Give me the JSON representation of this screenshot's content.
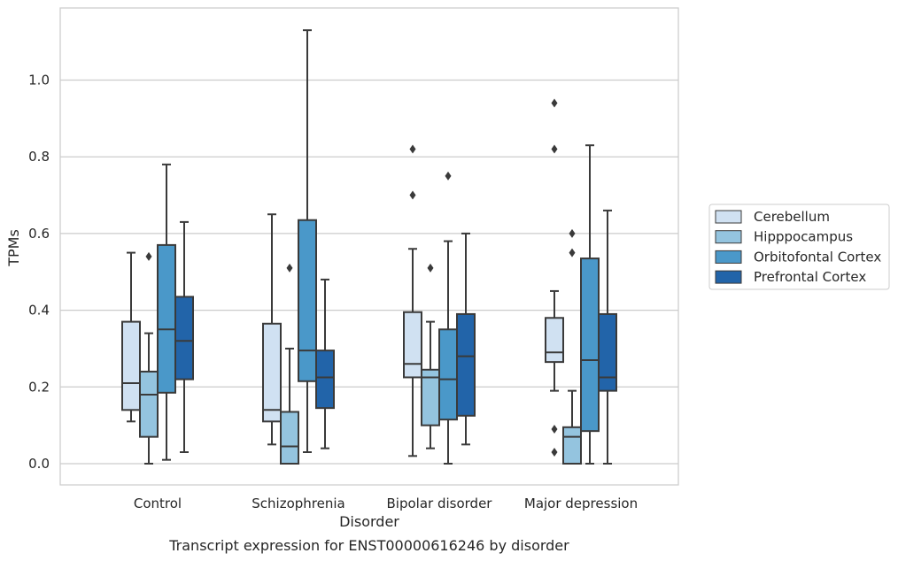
{
  "chart_data": {
    "type": "boxplot",
    "caption": "Transcript expression for ENST00000616246 by disorder",
    "xlabel": "Disorder",
    "ylabel": "TPMs",
    "ylim": [
      -0.055,
      1.19
    ],
    "yticks": [
      "0.0",
      "0.2",
      "0.4",
      "0.6",
      "0.8",
      "1.0"
    ],
    "grid": "horizontal",
    "legend_position": "right",
    "categories": [
      "Control",
      "Schizophrenia",
      "Bipolar disorder",
      "Major depression"
    ],
    "series": [
      {
        "name": "Cerebellum",
        "color": "#d0e1f2",
        "boxes": [
          {
            "min": 0.11,
            "q1": 0.14,
            "median": 0.21,
            "q3": 0.37,
            "max": 0.55,
            "outliers": []
          },
          {
            "min": 0.05,
            "q1": 0.11,
            "median": 0.14,
            "q3": 0.365,
            "max": 0.65,
            "outliers": []
          },
          {
            "min": 0.02,
            "q1": 0.225,
            "median": 0.26,
            "q3": 0.395,
            "max": 0.56,
            "outliers": [
              0.82,
              0.7
            ]
          },
          {
            "min": 0.19,
            "q1": 0.265,
            "median": 0.29,
            "q3": 0.38,
            "max": 0.45,
            "outliers": [
              0.94,
              0.82,
              0.09,
              0.03
            ]
          }
        ]
      },
      {
        "name": "Hipppocampus",
        "color": "#94c4df",
        "boxes": [
          {
            "min": 0.0,
            "q1": 0.07,
            "median": 0.18,
            "q3": 0.24,
            "max": 0.34,
            "outliers": [
              0.54
            ]
          },
          {
            "min": 0.0,
            "q1": 0.0,
            "median": 0.045,
            "q3": 0.135,
            "max": 0.3,
            "outliers": [
              0.51
            ]
          },
          {
            "min": 0.04,
            "q1": 0.1,
            "median": 0.225,
            "q3": 0.245,
            "max": 0.37,
            "outliers": [
              0.51
            ]
          },
          {
            "min": 0.0,
            "q1": 0.0,
            "median": 0.07,
            "q3": 0.095,
            "max": 0.19,
            "outliers": [
              0.6,
              0.55
            ]
          }
        ]
      },
      {
        "name": "Orbitofontal Cortex",
        "color": "#4a98c9",
        "boxes": [
          {
            "min": 0.01,
            "q1": 0.185,
            "median": 0.35,
            "q3": 0.57,
            "max": 0.78,
            "outliers": []
          },
          {
            "min": 0.03,
            "q1": 0.215,
            "median": 0.295,
            "q3": 0.635,
            "max": 1.13,
            "outliers": []
          },
          {
            "min": 0.0,
            "q1": 0.115,
            "median": 0.22,
            "q3": 0.35,
            "max": 0.58,
            "outliers": [
              0.75
            ]
          },
          {
            "min": 0.0,
            "q1": 0.085,
            "median": 0.27,
            "q3": 0.535,
            "max": 0.83,
            "outliers": []
          }
        ]
      },
      {
        "name": "Prefrontal Cortex",
        "color": "#2264a9",
        "boxes": [
          {
            "min": 0.03,
            "q1": 0.22,
            "median": 0.32,
            "q3": 0.435,
            "max": 0.63,
            "outliers": []
          },
          {
            "min": 0.04,
            "q1": 0.145,
            "median": 0.225,
            "q3": 0.295,
            "max": 0.48,
            "outliers": []
          },
          {
            "min": 0.05,
            "q1": 0.125,
            "median": 0.28,
            "q3": 0.39,
            "max": 0.6,
            "outliers": []
          },
          {
            "min": 0.0,
            "q1": 0.19,
            "median": 0.225,
            "q3": 0.39,
            "max": 0.66,
            "outliers": []
          }
        ]
      }
    ]
  }
}
